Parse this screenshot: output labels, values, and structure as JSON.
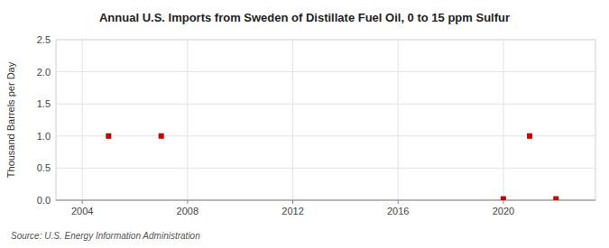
{
  "chart_data": {
    "type": "scatter",
    "title": "Annual U.S. Imports from Sweden of Distillate Fuel Oil, 0 to 15 ppm Sulfur",
    "ylabel": "Thousand Barrels per Day",
    "annotation": "Source: U.S. Energy Information Administration",
    "x": [
      2005,
      2007,
      2020,
      2021,
      2022
    ],
    "values": [
      1.0,
      1.0,
      0.02,
      1.0,
      0.02
    ],
    "color": "#cc0000",
    "marker": "square",
    "xlim": [
      2003.0,
      2023.5
    ],
    "ylim": [
      0.0,
      2.5
    ],
    "xticks": [
      2004,
      2008,
      2012,
      2016,
      2020
    ],
    "yticks": [
      {
        "value": 0.0,
        "label": "0.0"
      },
      0.5,
      {
        "value": 1.0,
        "label": "1.0"
      },
      1.5,
      {
        "value": 2.0,
        "label": "2.0"
      },
      2.5
    ],
    "grid": true
  }
}
